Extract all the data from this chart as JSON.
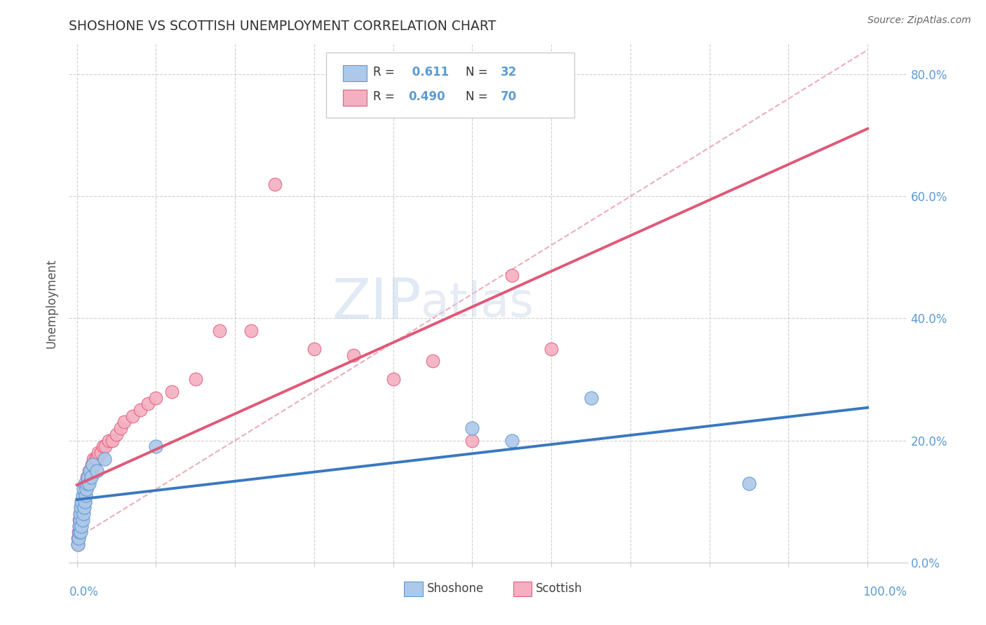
{
  "title": "SHOSHONE VS SCOTTISH UNEMPLOYMENT CORRELATION CHART",
  "source_text": "Source: ZipAtlas.com",
  "ylabel": "Unemployment",
  "watermark_zip": "ZIP",
  "watermark_atlas": "atlas",
  "legend_r1": "0.611",
  "legend_n1": "32",
  "legend_r2": "0.490",
  "legend_n2": "70",
  "shoshone_fill": "#adc8e8",
  "shoshone_edge": "#5b9bd5",
  "scottish_fill": "#f4afc0",
  "scottish_edge": "#e06080",
  "shoshone_line_color": "#3a78c0",
  "scottish_line_color": "#e05878",
  "ref_line_color": "#e8a0b0",
  "background_color": "#ffffff",
  "ylim": [
    0.0,
    0.85
  ],
  "xlim": [
    -0.01,
    1.05
  ],
  "y_ticks": [
    0.0,
    0.2,
    0.4,
    0.6,
    0.8
  ],
  "y_tick_labels": [
    "0.0%",
    "20.0%",
    "40.0%",
    "60.0%",
    "80.0%"
  ],
  "shoshone_x": [
    0.001,
    0.002,
    0.003,
    0.003,
    0.004,
    0.004,
    0.005,
    0.005,
    0.006,
    0.006,
    0.007,
    0.007,
    0.008,
    0.008,
    0.009,
    0.01,
    0.01,
    0.011,
    0.012,
    0.013,
    0.014,
    0.015,
    0.016,
    0.018,
    0.02,
    0.025,
    0.035,
    0.1,
    0.5,
    0.55,
    0.65,
    0.85
  ],
  "shoshone_y": [
    0.03,
    0.04,
    0.05,
    0.06,
    0.07,
    0.08,
    0.05,
    0.09,
    0.06,
    0.1,
    0.07,
    0.11,
    0.08,
    0.12,
    0.09,
    0.1,
    0.13,
    0.11,
    0.12,
    0.13,
    0.14,
    0.13,
    0.15,
    0.14,
    0.16,
    0.15,
    0.17,
    0.19,
    0.22,
    0.2,
    0.27,
    0.13
  ],
  "scottish_x": [
    0.001,
    0.001,
    0.002,
    0.002,
    0.003,
    0.003,
    0.003,
    0.004,
    0.004,
    0.004,
    0.005,
    0.005,
    0.005,
    0.006,
    0.006,
    0.006,
    0.007,
    0.007,
    0.008,
    0.008,
    0.008,
    0.009,
    0.009,
    0.01,
    0.01,
    0.01,
    0.011,
    0.011,
    0.012,
    0.012,
    0.013,
    0.013,
    0.014,
    0.014,
    0.015,
    0.015,
    0.016,
    0.017,
    0.018,
    0.019,
    0.02,
    0.021,
    0.022,
    0.023,
    0.025,
    0.027,
    0.03,
    0.033,
    0.036,
    0.04,
    0.045,
    0.05,
    0.055,
    0.06,
    0.07,
    0.08,
    0.09,
    0.1,
    0.12,
    0.15,
    0.18,
    0.22,
    0.25,
    0.3,
    0.35,
    0.4,
    0.45,
    0.5,
    0.55,
    0.6
  ],
  "scottish_y": [
    0.03,
    0.04,
    0.04,
    0.05,
    0.05,
    0.06,
    0.07,
    0.06,
    0.07,
    0.08,
    0.07,
    0.08,
    0.09,
    0.08,
    0.09,
    0.1,
    0.09,
    0.1,
    0.09,
    0.1,
    0.11,
    0.1,
    0.11,
    0.1,
    0.11,
    0.12,
    0.11,
    0.12,
    0.12,
    0.13,
    0.13,
    0.14,
    0.13,
    0.14,
    0.14,
    0.15,
    0.14,
    0.15,
    0.15,
    0.16,
    0.16,
    0.17,
    0.16,
    0.17,
    0.17,
    0.18,
    0.18,
    0.19,
    0.19,
    0.2,
    0.2,
    0.21,
    0.22,
    0.23,
    0.24,
    0.25,
    0.26,
    0.27,
    0.28,
    0.3,
    0.38,
    0.38,
    0.62,
    0.35,
    0.34,
    0.3,
    0.33,
    0.2,
    0.47,
    0.35
  ]
}
